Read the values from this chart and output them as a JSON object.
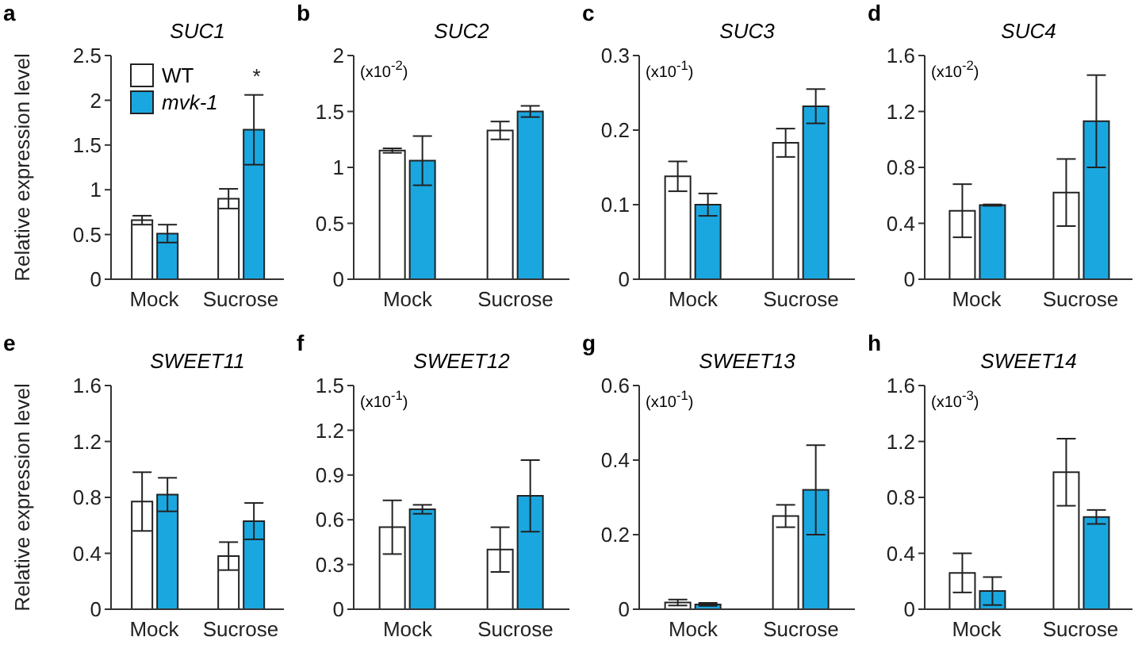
{
  "chart_data": [
    {
      "type": "bar",
      "title": "SUC1",
      "ylabel": "Relative expression level",
      "annotations": [
        "a",
        {
          "text": "*",
          "x": "Sucrose",
          "y": 2.1
        }
      ],
      "categories": [
        "Mock",
        "Sucrose"
      ],
      "legend": "top left",
      "ylim": [
        0,
        2.5
      ],
      "yticks": [
        0,
        0.5,
        1,
        1.5,
        2,
        2.5
      ],
      "series": [
        {
          "name": "WT",
          "color": "#ffffff",
          "values": [
            0.66,
            0.9
          ],
          "errors": [
            0.05,
            0.11
          ]
        },
        {
          "name": "mvk-1",
          "color": "#1aa7e0",
          "values": [
            0.51,
            1.67
          ],
          "errors": [
            0.1,
            0.39
          ]
        }
      ]
    },
    {
      "type": "bar",
      "title": "SUC2",
      "annotations": [
        "b",
        "(x10$^{-2}$)"
      ],
      "categories": [
        "Mock",
        "Sucrose"
      ],
      "ylim": [
        0,
        2
      ],
      "yticks": [
        0,
        0.5,
        1,
        1.5,
        2
      ],
      "series": [
        {
          "color": "#ffffff",
          "values": [
            1.15,
            1.33
          ],
          "errors": [
            0.02,
            0.08
          ]
        },
        {
          "color": "#1aa7e0",
          "values": [
            1.06,
            1.5
          ],
          "errors": [
            0.22,
            0.05
          ]
        }
      ]
    },
    {
      "type": "bar",
      "title": "SUC3",
      "annotations": [
        "c",
        "(x10$^{-1}$)"
      ],
      "categories": [
        "Mock",
        "Sucrose"
      ],
      "ylim": [
        0,
        0.3
      ],
      "yticks": [
        0,
        0.1,
        0.2,
        0.3
      ],
      "series": [
        {
          "color": "#ffffff",
          "values": [
            0.138,
            0.183
          ],
          "errors": [
            0.02,
            0.019
          ]
        },
        {
          "color": "#1aa7e0",
          "values": [
            0.1,
            0.232
          ],
          "errors": [
            0.015,
            0.023
          ]
        }
      ]
    },
    {
      "type": "bar",
      "title": "SUC4",
      "annotations": [
        "d",
        "(x10$^{-2}$)"
      ],
      "categories": [
        "Mock",
        "Sucrose"
      ],
      "ylim": [
        0,
        1.6
      ],
      "yticks": [
        0,
        0.4,
        0.8,
        1.2,
        1.6
      ],
      "series": [
        {
          "color": "#ffffff",
          "values": [
            0.49,
            0.62
          ],
          "errors": [
            0.19,
            0.24
          ]
        },
        {
          "color": "#1aa7e0",
          "values": [
            0.53,
            1.13
          ],
          "errors": [
            0.005,
            0.33
          ]
        }
      ]
    },
    {
      "type": "bar",
      "title": "SWEET11",
      "ylabel": "Relative expression level",
      "annotations": [
        "e"
      ],
      "categories": [
        "Mock",
        "Sucrose"
      ],
      "ylim": [
        0,
        1.6
      ],
      "yticks": [
        0,
        0.4,
        0.8,
        1.2,
        1.6
      ],
      "series": [
        {
          "color": "#ffffff",
          "values": [
            0.77,
            0.38
          ],
          "errors": [
            0.21,
            0.1
          ]
        },
        {
          "color": "#1aa7e0",
          "values": [
            0.82,
            0.63
          ],
          "errors": [
            0.12,
            0.13
          ]
        }
      ]
    },
    {
      "type": "bar",
      "title": "SWEET12",
      "annotations": [
        "f",
        "(x10$^{-1}$)"
      ],
      "categories": [
        "Mock",
        "Sucrose"
      ],
      "ylim": [
        0,
        1.5
      ],
      "yticks": [
        0,
        0.3,
        0.6,
        0.9,
        1.2,
        1.5
      ],
      "series": [
        {
          "color": "#ffffff",
          "values": [
            0.55,
            0.4
          ],
          "errors": [
            0.18,
            0.15
          ]
        },
        {
          "color": "#1aa7e0",
          "values": [
            0.67,
            0.76
          ],
          "errors": [
            0.03,
            0.24
          ]
        }
      ]
    },
    {
      "type": "bar",
      "title": "SWEET13",
      "annotations": [
        "g",
        "(x10$^{-1}$)"
      ],
      "categories": [
        "Mock",
        "Sucrose"
      ],
      "ylim": [
        0,
        0.6
      ],
      "yticks": [
        0,
        0.2,
        0.4,
        0.6
      ],
      "series": [
        {
          "color": "#ffffff",
          "values": [
            0.018,
            0.25
          ],
          "errors": [
            0.008,
            0.03
          ]
        },
        {
          "color": "#1aa7e0",
          "values": [
            0.013,
            0.32
          ],
          "errors": [
            0.004,
            0.12
          ]
        }
      ]
    },
    {
      "type": "bar",
      "title": "SWEET14",
      "annotations": [
        "h",
        "(x10$^{-3}$)"
      ],
      "categories": [
        "Mock",
        "Sucrose"
      ],
      "ylim": [
        0,
        1.6
      ],
      "yticks": [
        0,
        0.4,
        0.8,
        1.2,
        1.6
      ],
      "series": [
        {
          "color": "#ffffff",
          "values": [
            0.26,
            0.98
          ],
          "errors": [
            0.14,
            0.24
          ]
        },
        {
          "color": "#1aa7e0",
          "values": [
            0.13,
            0.66
          ],
          "errors": [
            0.1,
            0.05
          ]
        }
      ]
    }
  ]
}
